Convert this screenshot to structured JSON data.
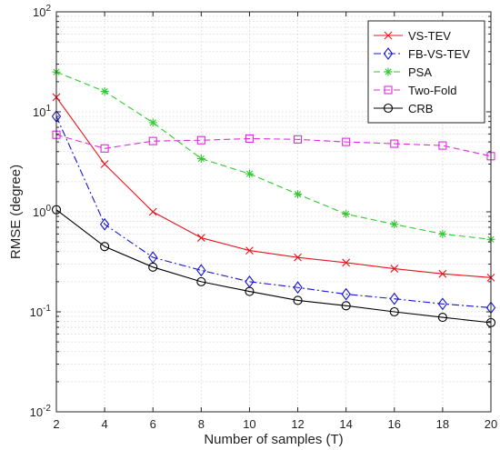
{
  "chart_data": {
    "type": "line",
    "xlabel": "Number of samples (T)",
    "ylabel": "RMSE (degree)",
    "x": [
      2,
      4,
      6,
      8,
      10,
      12,
      14,
      16,
      18,
      20
    ],
    "xlim": [
      2,
      20
    ],
    "xticks": [
      "2",
      "4",
      "6",
      "8",
      "10",
      "12",
      "14",
      "16",
      "18",
      "20"
    ],
    "ylim": [
      0.01,
      100
    ],
    "yscale": "log",
    "yticks": [
      {
        "value": 100,
        "base": "10",
        "exp": "2"
      },
      {
        "value": 10,
        "base": "10",
        "exp": "1"
      },
      {
        "value": 1,
        "base": "10",
        "exp": "0"
      },
      {
        "value": 0.1,
        "base": "10",
        "exp": "-1"
      },
      {
        "value": 0.01,
        "base": "10",
        "exp": "-2"
      }
    ],
    "grid": true,
    "legend_position": "top-right",
    "series": [
      {
        "name": "VS-TEV",
        "color": "#e8141b",
        "dash": "solid",
        "marker": "x",
        "values": [
          14,
          3.0,
          1.0,
          0.55,
          0.41,
          0.35,
          0.31,
          0.27,
          0.24,
          0.22
        ]
      },
      {
        "name": "FB-VS-TEV",
        "color": "#1515d6",
        "dash": "dashdot",
        "marker": "diamond",
        "values": [
          9.0,
          0.75,
          0.35,
          0.26,
          0.2,
          0.175,
          0.15,
          0.135,
          0.12,
          0.11
        ]
      },
      {
        "name": "PSA",
        "color": "#2fca2f",
        "dash": "dashed",
        "marker": "asterisk",
        "values": [
          25,
          16,
          7.8,
          3.4,
          2.4,
          1.5,
          0.95,
          0.75,
          0.6,
          0.53
        ]
      },
      {
        "name": "Two-Fold",
        "color": "#e02be0",
        "dash": "dashed",
        "marker": "square",
        "values": [
          5.9,
          4.3,
          5.1,
          5.2,
          5.4,
          5.3,
          5.0,
          4.8,
          4.6,
          3.6
        ]
      },
      {
        "name": "CRB",
        "color": "#000000",
        "dash": "solid",
        "marker": "circle",
        "values": [
          1.05,
          0.45,
          0.28,
          0.2,
          0.16,
          0.13,
          0.115,
          0.1,
          0.088,
          0.078
        ]
      }
    ]
  }
}
